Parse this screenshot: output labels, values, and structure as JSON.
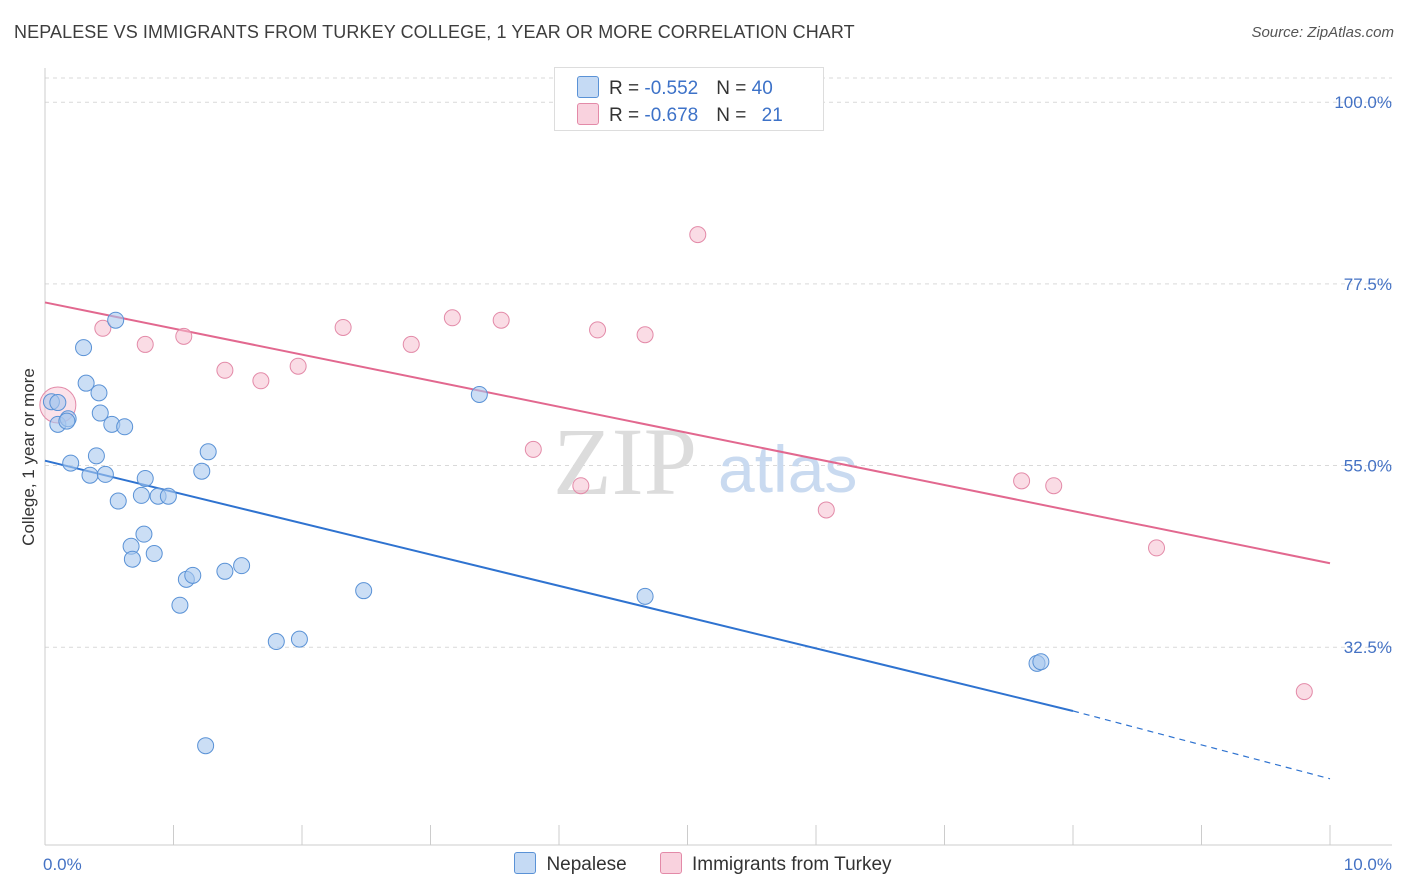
{
  "title": "NEPALESE VS IMMIGRANTS FROM TURKEY COLLEGE, 1 YEAR OR MORE CORRELATION CHART",
  "source": "Source: ZipAtlas.com",
  "watermark": {
    "zip": "ZIP",
    "atlas": "atlas"
  },
  "legend": {
    "rows": [
      {
        "r_label": "R = ",
        "r_value": "-0.552",
        "n_label": "N = ",
        "n_value": "40"
      },
      {
        "r_label": "R = ",
        "r_value": "-0.678",
        "n_label": "N = ",
        "n_value": "21"
      }
    ]
  },
  "colors": {
    "blue_fill": "#a9c8ef",
    "blue_stroke": "#5a92d6",
    "blue_line": "#2f73d0",
    "pink_fill": "#f6bfd0",
    "pink_stroke": "#e38aa8",
    "pink_line": "#e2688f",
    "grid": "#d9d9d9",
    "axis_text": "#4472c4"
  },
  "chart_data": {
    "type": "scatter",
    "title": "NEPALESE VS IMMIGRANTS FROM TURKEY COLLEGE, 1 YEAR OR MORE CORRELATION CHART",
    "xlabel": "",
    "ylabel": "College, 1 year or more",
    "xlim": [
      0,
      10
    ],
    "ylim": [
      8,
      103
    ],
    "x_tick_labels": [
      "0.0%",
      "10.0%"
    ],
    "y_ticks": [
      32.5,
      55.0,
      77.5,
      100.0
    ],
    "y_tick_labels": [
      "32.5%",
      "55.0%",
      "77.5%",
      "100.0%"
    ],
    "grid": true,
    "legend_position": "top-center",
    "series": [
      {
        "name": "Nepalese",
        "r": -0.552,
        "n": 40,
        "points": [
          [
            0.05,
            62.9
          ],
          [
            0.1,
            60.1
          ],
          [
            0.18,
            60.8
          ],
          [
            0.2,
            55.3
          ],
          [
            0.3,
            69.6
          ],
          [
            0.32,
            65.2
          ],
          [
            0.35,
            53.8
          ],
          [
            0.4,
            56.2
          ],
          [
            0.42,
            64.0
          ],
          [
            0.43,
            61.5
          ],
          [
            0.47,
            53.9
          ],
          [
            0.52,
            60.1
          ],
          [
            0.55,
            73.0
          ],
          [
            0.57,
            50.6
          ],
          [
            0.62,
            59.8
          ],
          [
            0.67,
            45.0
          ],
          [
            0.68,
            43.4
          ],
          [
            0.75,
            51.3
          ],
          [
            0.77,
            46.5
          ],
          [
            0.78,
            53.4
          ],
          [
            0.85,
            44.1
          ],
          [
            0.88,
            51.2
          ],
          [
            0.96,
            51.2
          ],
          [
            1.05,
            37.7
          ],
          [
            1.1,
            40.9
          ],
          [
            1.15,
            41.4
          ],
          [
            1.22,
            54.3
          ],
          [
            1.27,
            56.7
          ],
          [
            1.25,
            20.3
          ],
          [
            1.4,
            41.9
          ],
          [
            1.53,
            42.6
          ],
          [
            1.8,
            33.2
          ],
          [
            1.98,
            33.5
          ],
          [
            2.48,
            39.5
          ],
          [
            3.38,
            63.8
          ],
          [
            4.67,
            38.8
          ],
          [
            7.72,
            30.5
          ],
          [
            7.75,
            30.7
          ],
          [
            0.1,
            62.8
          ],
          [
            0.17,
            60.5
          ]
        ],
        "trend": {
          "x": [
            0,
            8.0
          ],
          "y": [
            55.6,
            24.6
          ],
          "dash_x": [
            8.0,
            10.0
          ],
          "dash_y": [
            24.6,
            16.2
          ]
        }
      },
      {
        "name": "Immigrants from Turkey",
        "r": -0.678,
        "n": 21,
        "points": [
          [
            0.1,
            62.5
          ],
          [
            0.45,
            72.0
          ],
          [
            0.78,
            70.0
          ],
          [
            1.08,
            71.0
          ],
          [
            1.4,
            66.8
          ],
          [
            1.68,
            65.5
          ],
          [
            1.97,
            67.3
          ],
          [
            2.32,
            72.1
          ],
          [
            2.85,
            70.0
          ],
          [
            3.17,
            73.3
          ],
          [
            3.55,
            73.0
          ],
          [
            3.8,
            57.0
          ],
          [
            4.17,
            52.5
          ],
          [
            4.3,
            71.8
          ],
          [
            4.67,
            71.2
          ],
          [
            5.08,
            83.6
          ],
          [
            6.08,
            49.5
          ],
          [
            7.6,
            53.1
          ],
          [
            7.85,
            52.5
          ],
          [
            8.65,
            44.8
          ],
          [
            9.8,
            27.0
          ]
        ],
        "trend": {
          "x": [
            0,
            10.0
          ],
          "y": [
            75.2,
            42.9
          ]
        }
      }
    ]
  }
}
